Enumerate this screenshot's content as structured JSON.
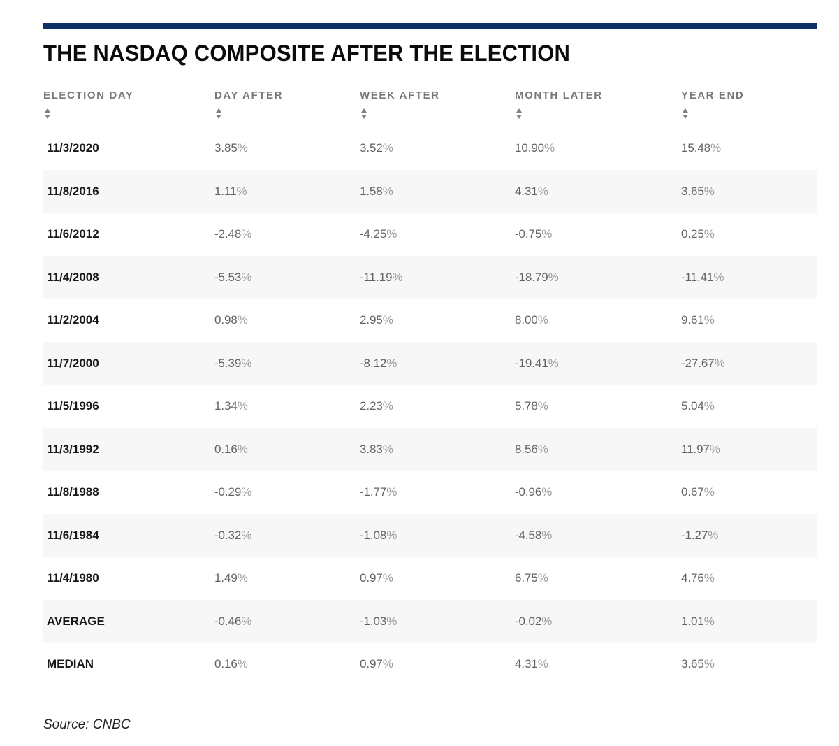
{
  "title": "THE NASDAQ COMPOSITE AFTER THE ELECTION",
  "source_label": "Source: CNBC",
  "colors": {
    "accent_bar": "#0e3063",
    "header_text": "#75797d",
    "alt_row": "#f7f7f7",
    "value_text": "#616467",
    "row_label_text": "#17181a"
  },
  "header": {
    "sort_icon": "up-down-triangles"
  },
  "chart_data": {
    "type": "table",
    "title": "THE NASDAQ COMPOSITE AFTER THE ELECTION",
    "columns": [
      "ELECTION DAY",
      "DAY AFTER",
      "WEEK AFTER",
      "MONTH LATER",
      "YEAR END"
    ],
    "rows": [
      [
        "11/3/2020",
        "3.85%",
        "3.52%",
        "10.90%",
        "15.48%"
      ],
      [
        "11/8/2016",
        "1.11%",
        "1.58%",
        "4.31%",
        "3.65%"
      ],
      [
        "11/6/2012",
        "-2.48%",
        "-4.25%",
        "-0.75%",
        "0.25%"
      ],
      [
        "11/4/2008",
        "-5.53%",
        "-11.19%",
        "-18.79%",
        "-11.41%"
      ],
      [
        "11/2/2004",
        "0.98%",
        "2.95%",
        "8.00%",
        "9.61%"
      ],
      [
        "11/7/2000",
        "-5.39%",
        "-8.12%",
        "-19.41%",
        "-27.67%"
      ],
      [
        "11/5/1996",
        "1.34%",
        "2.23%",
        "5.78%",
        "5.04%"
      ],
      [
        "11/3/1992",
        "0.16%",
        "3.83%",
        "8.56%",
        "11.97%"
      ],
      [
        "11/8/1988",
        "-0.29%",
        "-1.77%",
        "-0.96%",
        "0.67%"
      ],
      [
        "11/6/1984",
        "-0.32%",
        "-1.08%",
        "-4.58%",
        "-1.27%"
      ],
      [
        "11/4/1980",
        "1.49%",
        "0.97%",
        "6.75%",
        "4.76%"
      ],
      [
        "AVERAGE",
        "-0.46%",
        "-1.03%",
        "-0.02%",
        "1.01%"
      ],
      [
        "MEDIAN",
        "0.16%",
        "0.97%",
        "4.31%",
        "3.65%"
      ]
    ],
    "source": "CNBC",
    "layout": {
      "alternating_row_shading": true,
      "sortable_columns": true
    }
  }
}
